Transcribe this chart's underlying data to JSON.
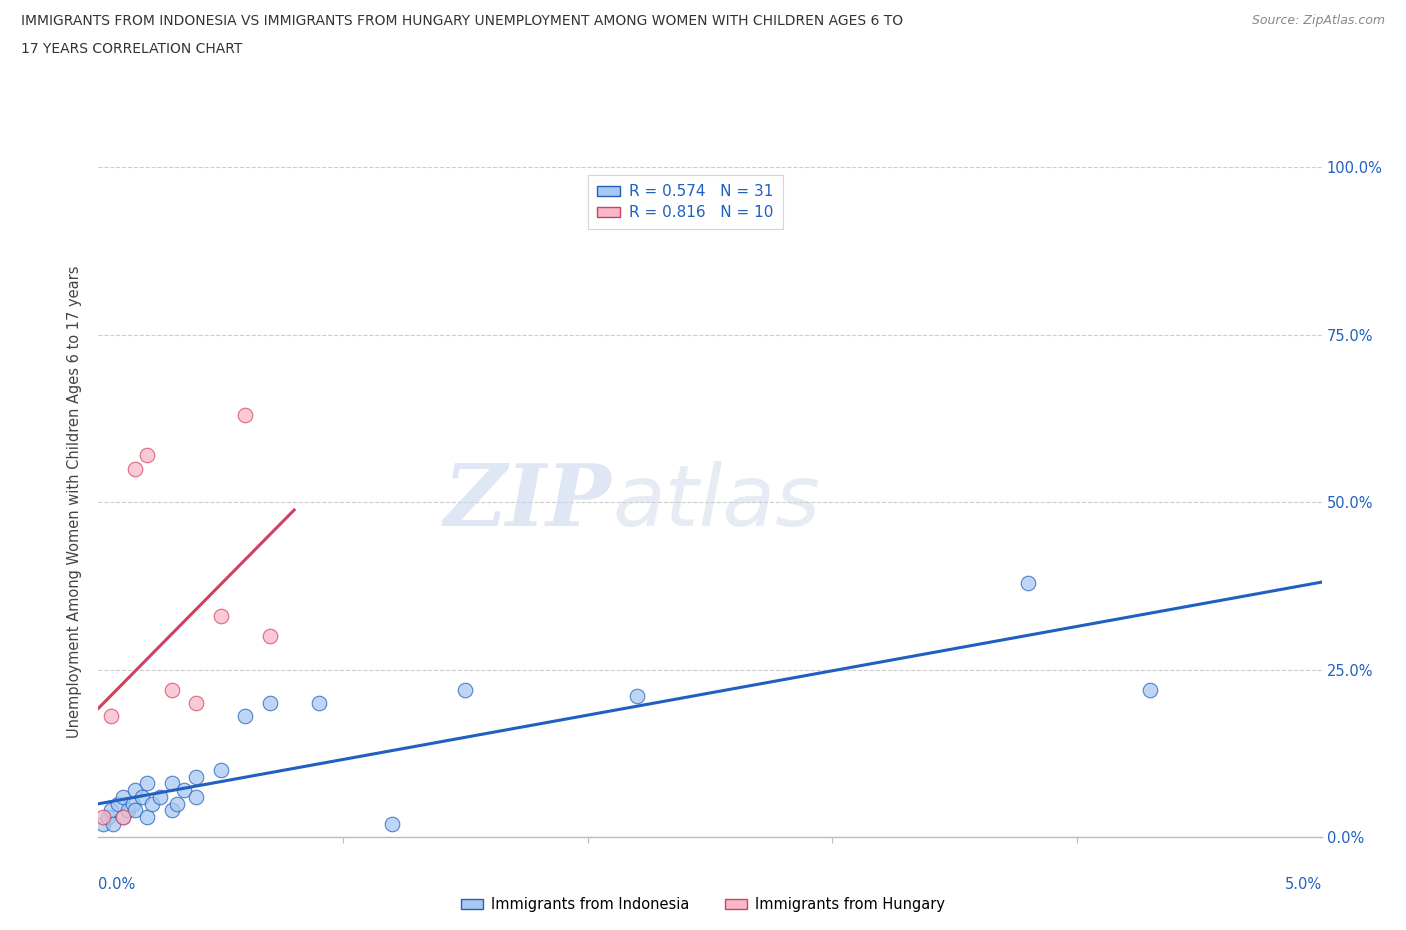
{
  "title_line1": "IMMIGRANTS FROM INDONESIA VS IMMIGRANTS FROM HUNGARY UNEMPLOYMENT AMONG WOMEN WITH CHILDREN AGES 6 TO",
  "title_line2": "17 YEARS CORRELATION CHART",
  "source": "Source: ZipAtlas.com",
  "ylabel": "Unemployment Among Women with Children Ages 6 to 17 years",
  "xlim": [
    0.0,
    0.05
  ],
  "ylim": [
    0.0,
    1.0
  ],
  "yticks": [
    0.0,
    0.25,
    0.5,
    0.75,
    1.0
  ],
  "ytick_labels": [
    "0.0%",
    "25.0%",
    "50.0%",
    "75.0%",
    "100.0%"
  ],
  "indonesia_x": [
    0.0002,
    0.0004,
    0.0005,
    0.0006,
    0.0008,
    0.001,
    0.001,
    0.0012,
    0.0014,
    0.0015,
    0.0015,
    0.0018,
    0.002,
    0.002,
    0.0022,
    0.0025,
    0.003,
    0.003,
    0.0032,
    0.0035,
    0.004,
    0.004,
    0.005,
    0.006,
    0.007,
    0.009,
    0.012,
    0.015,
    0.022,
    0.038,
    0.043
  ],
  "indonesia_y": [
    0.02,
    0.03,
    0.04,
    0.02,
    0.05,
    0.03,
    0.06,
    0.04,
    0.05,
    0.07,
    0.04,
    0.06,
    0.08,
    0.03,
    0.05,
    0.06,
    0.04,
    0.08,
    0.05,
    0.07,
    0.09,
    0.06,
    0.1,
    0.18,
    0.2,
    0.2,
    0.02,
    0.22,
    0.21,
    0.38,
    0.22
  ],
  "hungary_x": [
    0.0002,
    0.0005,
    0.001,
    0.0015,
    0.002,
    0.003,
    0.004,
    0.005,
    0.006,
    0.007
  ],
  "hungary_y": [
    0.03,
    0.18,
    0.03,
    0.55,
    0.57,
    0.22,
    0.2,
    0.33,
    0.63,
    0.3
  ],
  "indonesia_color": "#a8c8f0",
  "hungary_color": "#f8b8c8",
  "indonesia_line_color": "#2060c0",
  "hungary_line_color": "#d04060",
  "R_indonesia": 0.574,
  "N_indonesia": 31,
  "R_hungary": 0.816,
  "N_hungary": 10,
  "watermark_zip": "ZIP",
  "watermark_atlas": "atlas",
  "background_color": "#ffffff",
  "grid_color": "#cccccc"
}
